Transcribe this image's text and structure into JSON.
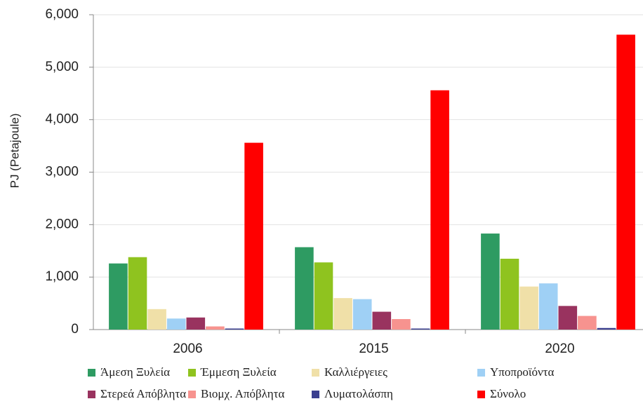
{
  "chart_data": {
    "type": "bar",
    "y_label": "PJ (Petajoule)",
    "categories": [
      "2006",
      "2015",
      "2020"
    ],
    "series": [
      {
        "name": "Άμεση Ξυλεία",
        "color": "#2e9b62",
        "values": [
          1260,
          1570,
          1830
        ]
      },
      {
        "name": "Έμμεση Ξυλεία",
        "color": "#8fc31f",
        "values": [
          1380,
          1280,
          1350
        ]
      },
      {
        "name": "Καλλιέργειες",
        "color": "#f0e0a8",
        "values": [
          390,
          600,
          820
        ]
      },
      {
        "name": "Υποπροϊόντα",
        "color": "#9fd0f5",
        "values": [
          210,
          580,
          880
        ]
      },
      {
        "name": "Στερεά Απόβλητα",
        "color": "#99335f",
        "values": [
          230,
          340,
          450
        ]
      },
      {
        "name": "Βιομχ. Απόβλητα",
        "color": "#f7938f",
        "values": [
          60,
          200,
          260
        ]
      },
      {
        "name": "Λυματολάσπη",
        "color": "#3b3f8f",
        "values": [
          20,
          20,
          30
        ]
      },
      {
        "name": "Σύνολο",
        "color": "#ff0000",
        "values": [
          3560,
          4560,
          5620
        ]
      }
    ],
    "ylim": [
      0,
      6000
    ],
    "yticks": [
      0,
      {
        "value": 1000,
        "label": "1,000"
      },
      {
        "value": 2000,
        "label": "2,000"
      },
      {
        "value": 3000,
        "label": "3,000"
      },
      {
        "value": 4000,
        "label": "4,000"
      },
      {
        "value": 5000,
        "label": "5,000"
      },
      {
        "value": 6000,
        "label": "6,000"
      }
    ],
    "grid": true
  }
}
